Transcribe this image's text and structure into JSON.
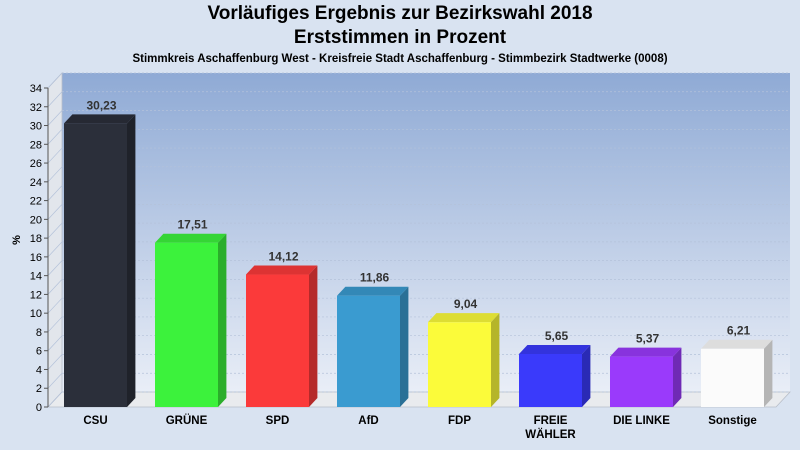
{
  "header": {
    "title_line1": "Vorläufiges Ergebnis zur Bezirkswahl 2018",
    "title_line2": "Erststimmen in Prozent",
    "subtitle": "Stimmkreis Aschaffenburg West - Kreisfreie Stadt Aschaffenburg - Stimmbezirk Stadtwerke (0008)"
  },
  "chart_data": {
    "type": "bar",
    "title": "Vorläufiges Ergebnis zur Bezirkswahl 2018 Erststimmen in Prozent",
    "subtitle": "Stimmkreis Aschaffenburg West - Kreisfreie Stadt Aschaffenburg - Stimmbezirk Stadtwerke (0008)",
    "xlabel": "",
    "ylabel": "%",
    "ylim": [
      0,
      34
    ],
    "yticks": [
      0,
      2,
      4,
      6,
      8,
      10,
      12,
      14,
      16,
      18,
      20,
      22,
      24,
      26,
      28,
      30,
      32,
      34
    ],
    "grid": true,
    "categories": [
      "CSU",
      "GRÜNE",
      "SPD",
      "AfD",
      "FDP",
      "FREIE WÄHLER",
      "DIE LINKE",
      "Sonstige"
    ],
    "category_lines": [
      [
        "CSU"
      ],
      [
        "GRÜNE"
      ],
      [
        "SPD"
      ],
      [
        "AfD"
      ],
      [
        "FDP"
      ],
      [
        "FREIE",
        "WÄHLER"
      ],
      [
        "DIE LINKE"
      ],
      [
        "Sonstige"
      ]
    ],
    "values": [
      30.23,
      17.51,
      14.12,
      11.86,
      9.04,
      5.65,
      5.37,
      6.21
    ],
    "value_labels": [
      "30,23",
      "17,51",
      "14,12",
      "11,86",
      "9,04",
      "5,65",
      "5,37",
      "6,21"
    ],
    "colors": [
      "#2b2f3a",
      "#3cf23c",
      "#fb3a3a",
      "#3a9bd0",
      "#fbfb3a",
      "#3a3afb",
      "#9a3afb",
      "#fbfbfb"
    ]
  }
}
